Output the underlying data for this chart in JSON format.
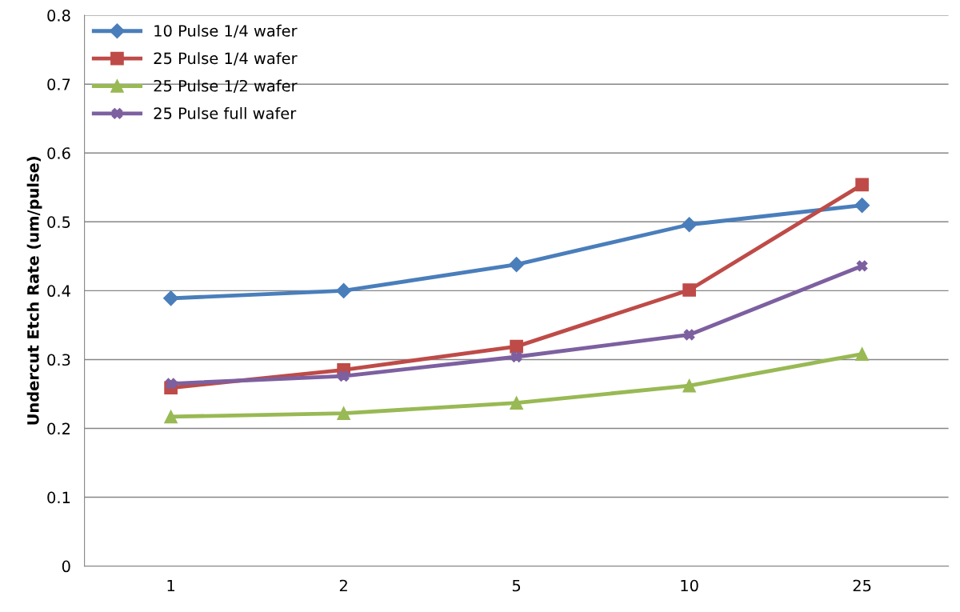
{
  "chart_data": {
    "type": "line",
    "ylabel": "Undercut Etch Rate (um/pulse)",
    "categories": [
      "1",
      "2",
      "5",
      "10",
      "25"
    ],
    "series": [
      {
        "name": "10 Pulse 1/4 wafer",
        "color": "#4a7ebb",
        "marker": "diamond",
        "values": [
          0.389,
          0.4,
          0.438,
          0.496,
          0.524
        ]
      },
      {
        "name": "25 Pulse 1/4 wafer",
        "color": "#be4b48",
        "marker": "square",
        "values": [
          0.259,
          0.285,
          0.319,
          0.401,
          0.554
        ]
      },
      {
        "name": "25 Pulse 1/2 wafer",
        "color": "#98b954",
        "marker": "triangle",
        "values": [
          0.217,
          0.222,
          0.237,
          0.262,
          0.308
        ]
      },
      {
        "name": "25 Pulse full wafer",
        "color": "#7d60a0",
        "marker": "cross",
        "values": [
          0.265,
          0.276,
          0.304,
          0.336,
          0.436
        ]
      }
    ],
    "ylim": [
      0,
      0.8
    ],
    "yticks": [
      0,
      0.1,
      0.2,
      0.3,
      0.4,
      0.5,
      0.6,
      0.7,
      0.8
    ],
    "grid": "y",
    "legend": "top left",
    "line_style": "solid"
  }
}
